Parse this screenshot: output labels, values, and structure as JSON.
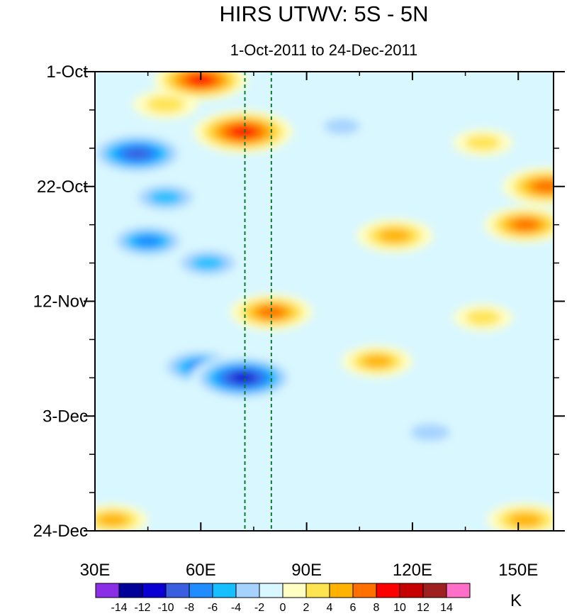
{
  "chart_data": {
    "type": "heatmap",
    "title": "HIRS UTWV: 5S - 5N",
    "subtitle": "1-Oct-2011 to 24-Dec-2011",
    "xlabel": "",
    "ylabel": "",
    "x_ticks": [
      {
        "label": "30E",
        "value": 30
      },
      {
        "label": "60E",
        "value": 60
      },
      {
        "label": "90E",
        "value": 90
      },
      {
        "label": "120E",
        "value": 120
      },
      {
        "label": "150E",
        "value": 150
      }
    ],
    "x_range": [
      30,
      160
    ],
    "y_ticks": [
      {
        "label": "1-Oct",
        "day": 0
      },
      {
        "label": "22-Oct",
        "day": 21
      },
      {
        "label": "12-Nov",
        "day": 42
      },
      {
        "label": "3-Dec",
        "day": 63
      },
      {
        "label": "24-Dec",
        "day": 84
      }
    ],
    "y_range_days": [
      0,
      84
    ],
    "reference_lines_lon": [
      72.5,
      80
    ],
    "colorbar": {
      "unit": "K",
      "levels": [
        "-14",
        "-12",
        "-10",
        "-8",
        "-6",
        "-4",
        "-2",
        "0",
        "2",
        "4",
        "6",
        "8",
        "10",
        "12",
        "14"
      ],
      "colors": [
        "#8c2ee8",
        "#000099",
        "#0a00d1",
        "#3a5ee0",
        "#1f8cff",
        "#16bfff",
        "#a6d3ff",
        "#d9f7ff",
        "#ffffc4",
        "#ffe452",
        "#ffb300",
        "#ff7000",
        "#ff0000",
        "#c70000",
        "#9e2020",
        "#ff6ec7"
      ]
    },
    "features": [
      {
        "lon": 60,
        "day": 1.5,
        "value": 9
      },
      {
        "lon": 72,
        "day": 11,
        "value": 10
      },
      {
        "lon": 50,
        "day": 6,
        "value": 4
      },
      {
        "lon": 42,
        "day": 15,
        "value": -10
      },
      {
        "lon": 50,
        "day": 23,
        "value": -6
      },
      {
        "lon": 45,
        "day": 31,
        "value": -7
      },
      {
        "lon": 62,
        "day": 35,
        "value": -6
      },
      {
        "lon": 80,
        "day": 44,
        "value": 7
      },
      {
        "lon": 60,
        "day": 54,
        "value": -8
      },
      {
        "lon": 72,
        "day": 56,
        "value": -11
      },
      {
        "lon": 115,
        "day": 30,
        "value": 6
      },
      {
        "lon": 152,
        "day": 28,
        "value": 7
      },
      {
        "lon": 158,
        "day": 21,
        "value": 8
      },
      {
        "lon": 110,
        "day": 53,
        "value": 5
      },
      {
        "lon": 125,
        "day": 66,
        "value": -4
      },
      {
        "lon": 152,
        "day": 82,
        "value": 6
      },
      {
        "lon": 35,
        "day": 82,
        "value": 5
      },
      {
        "lon": 100,
        "day": 10,
        "value": -3
      },
      {
        "lon": 140,
        "day": 13,
        "value": 3
      },
      {
        "lon": 140,
        "day": 45,
        "value": 3
      }
    ]
  }
}
